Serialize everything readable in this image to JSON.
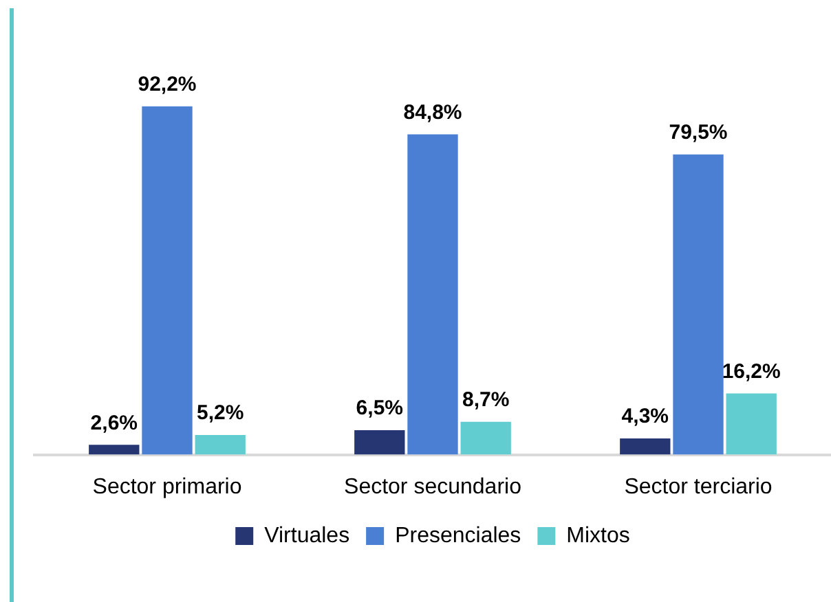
{
  "chart_data": {
    "type": "bar",
    "categories": [
      "Sector primario",
      "Sector secundario",
      "Sector terciario"
    ],
    "series": [
      {
        "name": "Virtuales",
        "color": "#263673",
        "values": [
          2.6,
          6.5,
          4.3
        ],
        "value_labels": [
          "2,6%",
          "6,5%",
          "4,3%"
        ]
      },
      {
        "name": "Presenciales",
        "color": "#4a7fd4",
        "values": [
          92.2,
          84.8,
          79.5
        ],
        "value_labels": [
          "92,2%",
          "84,8%",
          "79,5%"
        ]
      },
      {
        "name": "Mixtos",
        "color": "#62cdd0",
        "values": [
          5.2,
          8.7,
          16.2
        ],
        "value_labels": [
          "5,2%",
          "8,7%",
          "16,2%"
        ]
      }
    ],
    "legend": "bottom",
    "grid": false
  }
}
